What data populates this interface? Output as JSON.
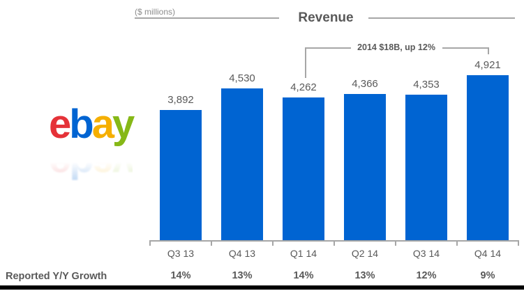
{
  "header": {
    "units_label": "($ millions)",
    "title": "Revenue"
  },
  "logo": {
    "brand": "ebay",
    "letters": [
      {
        "char": "e",
        "color": "#e53238"
      },
      {
        "char": "b",
        "color": "#0064d2"
      },
      {
        "char": "a",
        "color": "#f5af02"
      },
      {
        "char": "y",
        "color": "#86b817"
      }
    ]
  },
  "chart_data": {
    "type": "bar",
    "title": "Revenue",
    "units": "$ millions",
    "categories": [
      "Q3 13",
      "Q4 13",
      "Q1 14",
      "Q2 14",
      "Q3 14",
      "Q4 14"
    ],
    "values": [
      3892,
      4530,
      4262,
      4366,
      4353,
      4921
    ],
    "value_labels": [
      "3,892",
      "4,530",
      "4,262",
      "4,366",
      "4,353",
      "4,921"
    ],
    "bar_color": "#0064d2",
    "ylim": [
      0,
      4921
    ],
    "grid": false,
    "legend": false,
    "annotation": {
      "text": "2014 $18B, up 12%",
      "span_from": "Q1 14",
      "span_to": "Q4 14"
    }
  },
  "growth": {
    "label": "Reported Y/Y Growth",
    "values": [
      "14%",
      "13%",
      "14%",
      "13%",
      "12%",
      "9%"
    ]
  },
  "colors": {
    "bar": "#0064d2",
    "text_gray": "#595959",
    "line_gray": "#a6a6a6",
    "footer_bar": "#000000"
  }
}
